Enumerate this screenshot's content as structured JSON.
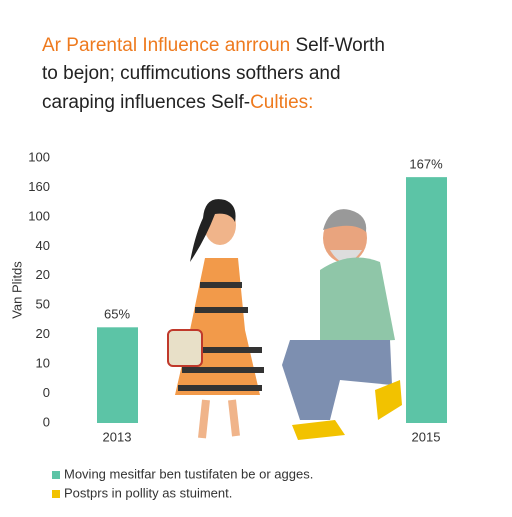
{
  "chart_data": {
    "type": "bar",
    "title": [
      [
        "Ar Parental Influence anrroun",
        "Self-Worth"
      ],
      [
        "to bejon; cuffimcutions softhers and"
      ],
      [
        "caraping influences Self-",
        "Culties:"
      ]
    ],
    "ylabel": "Van Plitds",
    "categories": [
      "2013",
      "2015"
    ],
    "values": [
      65,
      167
    ],
    "value_labels": [
      "65%",
      "167%"
    ],
    "color": "#5cc4a6",
    "ylim": [
      0,
      180
    ],
    "yticks": [
      0,
      {
        "value": 20,
        "label": "0"
      },
      {
        "value": 40,
        "label": "10"
      },
      {
        "value": 60,
        "label": "20"
      },
      {
        "value": 80,
        "label": "50"
      },
      {
        "value": 100,
        "label": "20"
      },
      {
        "value": 120,
        "label": "40"
      },
      {
        "value": 140,
        "label": "100"
      },
      160,
      {
        "value": 180,
        "label": "100"
      }
    ],
    "legend": [
      {
        "name": "Moving mesitfar ben tustifaten be or agges.",
        "color": "#5cc4a6"
      },
      {
        "name": "Postprs in pollity as stuiment.",
        "color": "#f2c200"
      }
    ]
  }
}
